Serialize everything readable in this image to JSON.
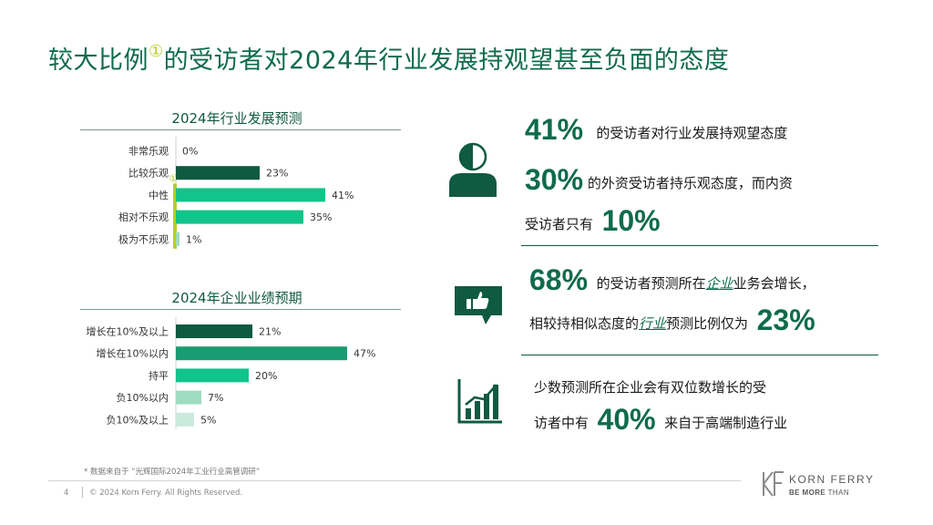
{
  "title": {
    "text": "较大比例",
    "sup": "①",
    "rest": "的受访者对2024年行业发展持观望甚至负面的态度"
  },
  "colors": {
    "dark_green": "#0f5a40",
    "mid_green": "#1a9c72",
    "bright_green": "#12c48a",
    "light_green": "#9edcbf",
    "pale_green": "#cbe9dc",
    "marker_yellow": "#b8cc2a"
  },
  "chart_data": [
    {
      "type": "bar",
      "orientation": "horizontal",
      "title": "2024年行业发展预测",
      "categories": [
        "非常乐观",
        "比较乐观",
        "中性",
        "相对不乐观",
        "极为不乐观"
      ],
      "values": [
        0,
        23,
        41,
        35,
        1
      ],
      "value_labels": [
        "0%",
        "23%",
        "41%",
        "35%",
        "1%"
      ],
      "unit": "%",
      "xlim": [
        0,
        47
      ],
      "bar_colors": [
        "#0f5a40",
        "#0f5a40",
        "#12c48a",
        "#12c48a",
        "#9edcbf"
      ],
      "annotation": "①",
      "annotation_rows": [
        2,
        3,
        4
      ]
    },
    {
      "type": "bar",
      "orientation": "horizontal",
      "title": "2024年企业业绩预期",
      "categories": [
        "增长在10%及以上",
        "增长在10%以内",
        "持平",
        "负10%以内",
        "负10%及以上"
      ],
      "values": [
        21,
        47,
        20,
        7,
        5
      ],
      "value_labels": [
        "21%",
        "47%",
        "20%",
        "7%",
        "5%"
      ],
      "unit": "%",
      "xlim": [
        0,
        47
      ],
      "bar_colors": [
        "#0f5a40",
        "#1a9c72",
        "#12c48a",
        "#9edcbf",
        "#cbe9dc"
      ]
    }
  ],
  "stats": {
    "s1": {
      "big": "41%",
      "text": "的受访者对行业发展持观望态度"
    },
    "s2": {
      "big1": "30%",
      "text1": "的外资受访者持乐观态度，而内资",
      "text2": "受访者只有",
      "big2": "10%"
    },
    "s3": {
      "big1": "68%",
      "text1a": "的受访者预测所在",
      "em1": "企业",
      "text1b": "业务会增长，",
      "text2a": "相较持相似态度的",
      "em2": "行业",
      "text2b": "预测比例仅为",
      "big2": "23%"
    },
    "s4": {
      "text1": "少数预测所在企业会有双位数增长的受",
      "text2a": "访者中有",
      "big": "40%",
      "text2b": "来自于高端制造行业"
    }
  },
  "icons": {
    "stat1": "half-person-icon",
    "stat2": "thumbs-up-chat-icon",
    "stat3": "bar-chart-growth-icon"
  },
  "footnote": "* 数据来自于 “光辉国际2024年工业行业高管调研”",
  "footer": {
    "page_number": "4",
    "copyright": "© 2024 Korn Ferry. All Rights Reserved."
  },
  "brand": {
    "name": "KORN FERRY",
    "tagline_bold": "BE MORE",
    "tagline_rest": " THAN"
  }
}
